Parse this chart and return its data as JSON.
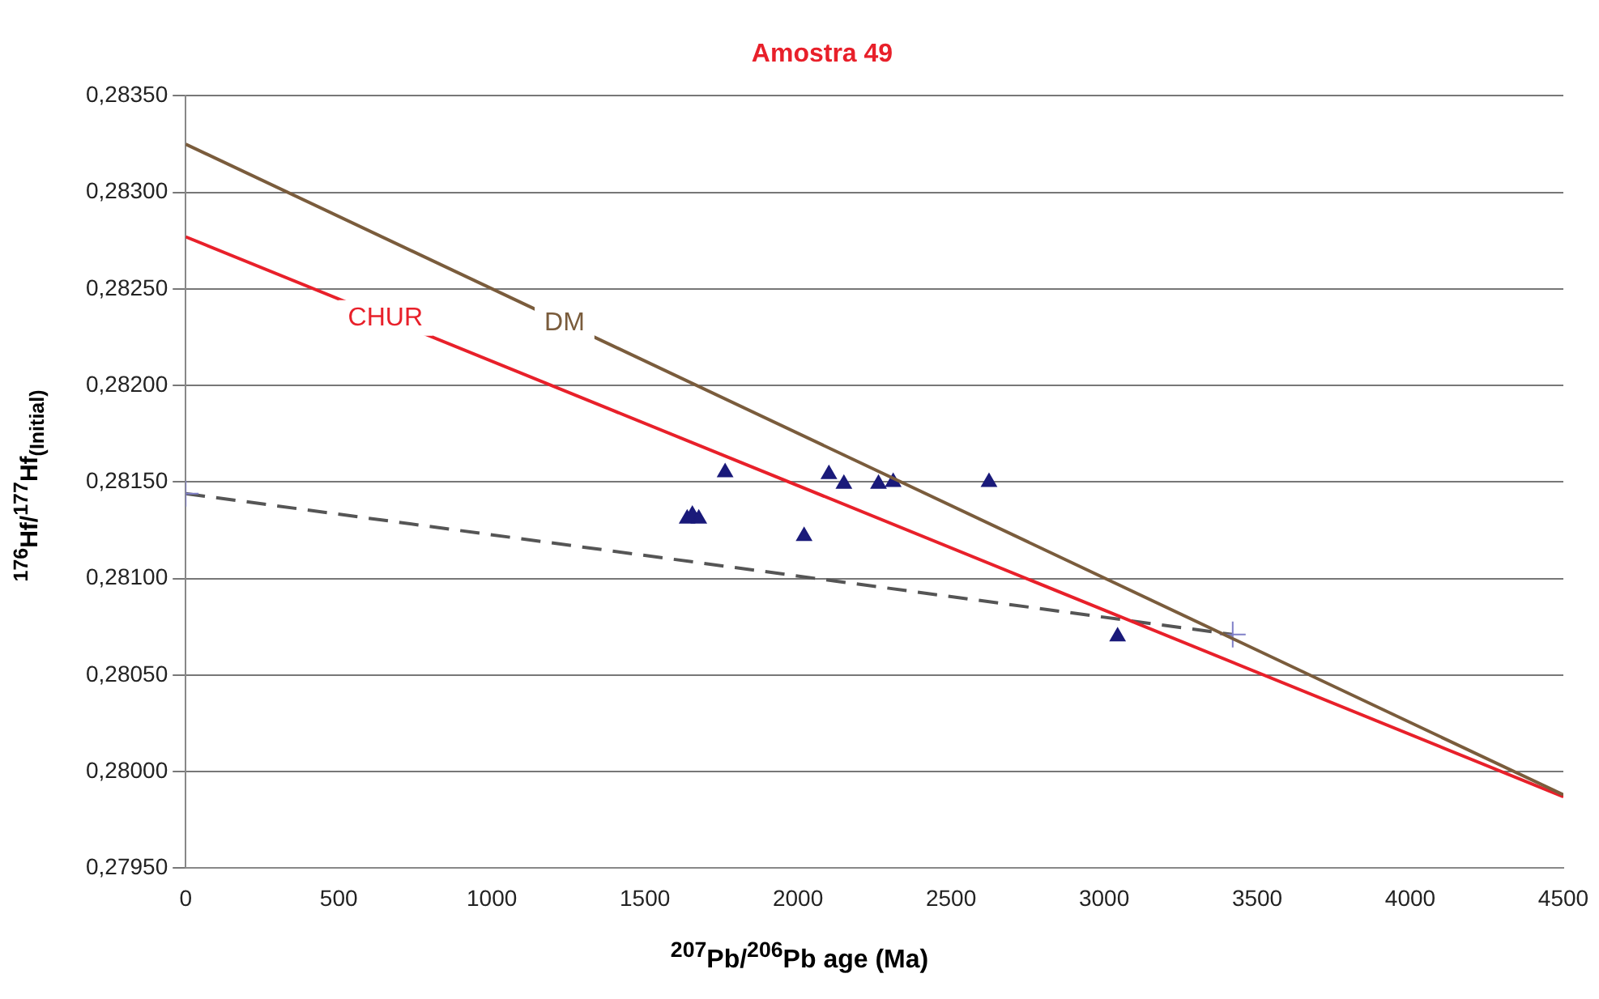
{
  "chart_data": {
    "type": "scatter",
    "title": "Amostra 49",
    "xlabel": "$^{207}$Pb/$^{206}$Pb age (Ma)",
    "ylabel": "$^{176}$Hf/$^{177}$Hf$_{(Initial)}$",
    "xlim": [
      0,
      4500
    ],
    "xticks": [
      0,
      500,
      1000,
      1500,
      2000,
      2500,
      3000,
      3500,
      4000,
      4500
    ],
    "ylim": [
      0.2795,
      0.2835
    ],
    "yticks": [
      {
        "value": 0.2795,
        "label": "0,27950"
      },
      {
        "value": 0.28,
        "label": "0,28000"
      },
      {
        "value": 0.2805,
        "label": "0,28050"
      },
      {
        "value": 0.281,
        "label": "0,28100"
      },
      {
        "value": 0.2815,
        "label": "0,28150"
      },
      {
        "value": 0.282,
        "label": "0,28200"
      },
      {
        "value": 0.2825,
        "label": "0,28250"
      },
      {
        "value": 0.283,
        "label": "0,28300"
      },
      {
        "value": 0.2835,
        "label": "0,28350"
      }
    ],
    "grid": "y",
    "legend": false,
    "series": [
      {
        "type": "line",
        "name": "DM",
        "color": "#7a5c3c",
        "marker": "none",
        "line_style": "solid",
        "x": [
          0,
          4500
        ],
        "values": [
          0.28325,
          0.27988
        ]
      },
      {
        "type": "line",
        "name": "CHUR",
        "color": "#e8202a",
        "marker": "none",
        "line_style": "solid",
        "x": [
          0,
          4500
        ],
        "values": [
          0.28277,
          0.27987
        ]
      },
      {
        "type": "line",
        "color": "#555555",
        "marker": "cross",
        "line_style": "dashed",
        "x": [
          0,
          3420
        ],
        "values": [
          0.28144,
          0.28071
        ]
      },
      {
        "color": "#1a1a7a",
        "marker": "triangle",
        "x": [
          1638,
          1655,
          1676,
          1762,
          2020,
          2101,
          2150,
          2263,
          2311,
          2624,
          3044
        ],
        "values": [
          0.28131,
          0.28133,
          0.28131,
          0.28155,
          0.28122,
          0.28154,
          0.28149,
          0.28149,
          0.2815,
          0.2815,
          0.2807
        ]
      }
    ]
  }
}
